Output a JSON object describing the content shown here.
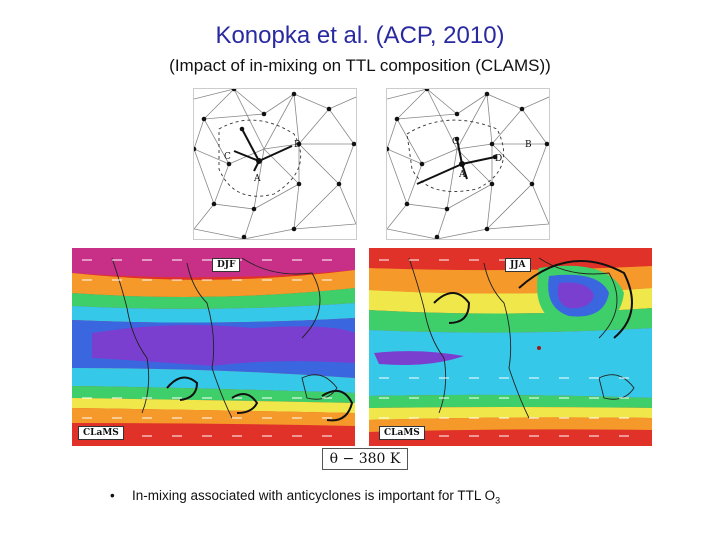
{
  "slide": {
    "title": "Konopka et al. (ACP, 2010)",
    "subtitle": "(Impact of in-mixing on TTL composition (CLAMS))",
    "bullet_text": "In-mixing associated with anticyclones is important for TTL O",
    "bullet_subscript": "3"
  },
  "mesh_left": {
    "labels": [
      "B",
      "C",
      "A"
    ]
  },
  "mesh_right": {
    "labels": [
      "B",
      "C",
      "D",
      "A"
    ]
  },
  "map_left": {
    "season": "DJF",
    "model": "CLaMS"
  },
  "map_right": {
    "season": "JJA",
    "model": "CLaMS"
  },
  "scale_label": "θ − 380 K",
  "colors": {
    "title": "#2a2aa0",
    "purple": "#7b3fd0",
    "blue": "#3a66e0",
    "cyan": "#36c8e8",
    "green": "#3fcf6a",
    "yellow": "#f0e84a",
    "orange": "#f59a2a",
    "red": "#e03228"
  }
}
